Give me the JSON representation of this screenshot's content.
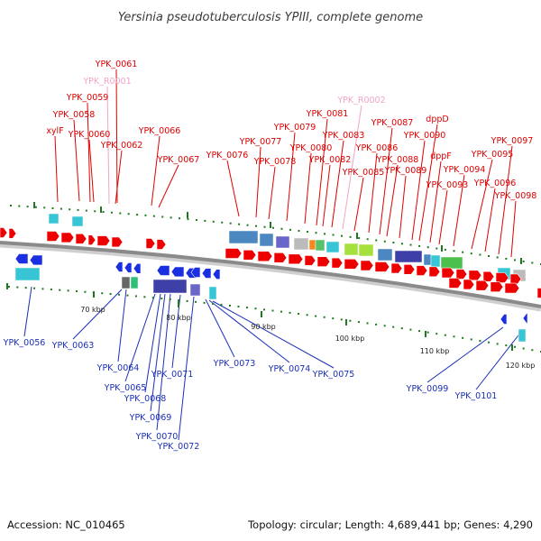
{
  "title": "Yersinia pseudotuberculosis YPIII, complete genome",
  "footer": {
    "accession": "Accession: NC_010465",
    "summary": "Topology: circular; Length: 4,689,441 bp; Genes: 4,290"
  },
  "colors": {
    "forward_gene": "#ee0000",
    "reverse_gene": "#1a2fe0",
    "forward_label": "#dd0000",
    "rna_label": "#f2a3c8",
    "reverse_label": "#1a2fb8",
    "tick_mark": "#1e7a1e",
    "backbone": "#8a8a8a"
  },
  "ticks": [
    "70 kbp",
    "80 kbp",
    "90 kbp",
    "100 kbp",
    "110 kbp",
    "120 kbp"
  ],
  "labels_top": [
    {
      "text": "YPK_0061",
      "type": "cds"
    },
    {
      "text": "YPK_R0001",
      "type": "rna"
    },
    {
      "text": "YPK_0059",
      "type": "cds"
    },
    {
      "text": "YPK_0058",
      "type": "cds"
    },
    {
      "text": "YPK_0060",
      "type": "cds"
    },
    {
      "text": "xylF",
      "type": "cds"
    },
    {
      "text": "YPK_0062",
      "type": "cds"
    },
    {
      "text": "YPK_0066",
      "type": "cds"
    },
    {
      "text": "YPK_0067",
      "type": "cds"
    },
    {
      "text": "YPK_0076",
      "type": "cds"
    },
    {
      "text": "YPK_0077",
      "type": "cds"
    },
    {
      "text": "YPK_0078",
      "type": "cds"
    },
    {
      "text": "YPK_0079",
      "type": "cds"
    },
    {
      "text": "YPK_0080",
      "type": "cds"
    },
    {
      "text": "YPK_0081",
      "type": "cds"
    },
    {
      "text": "YPK_0082",
      "type": "cds"
    },
    {
      "text": "YPK_0083",
      "type": "cds"
    },
    {
      "text": "YPK_R0002",
      "type": "rna"
    },
    {
      "text": "YPK_0085",
      "type": "cds"
    },
    {
      "text": "YPK_0086",
      "type": "cds"
    },
    {
      "text": "YPK_0087",
      "type": "cds"
    },
    {
      "text": "YPK_0088",
      "type": "cds"
    },
    {
      "text": "YPK_0089",
      "type": "cds"
    },
    {
      "text": "YPK_0090",
      "type": "cds"
    },
    {
      "text": "dppD",
      "type": "cds"
    },
    {
      "text": "dppF",
      "type": "cds"
    },
    {
      "text": "YPK_0093",
      "type": "cds"
    },
    {
      "text": "YPK_0094",
      "type": "cds"
    },
    {
      "text": "YPK_0095",
      "type": "cds"
    },
    {
      "text": "YPK_0096",
      "type": "cds"
    },
    {
      "text": "YPK_0097",
      "type": "cds"
    },
    {
      "text": "YPK_0098",
      "type": "cds"
    }
  ],
  "labels_bottom": [
    {
      "text": "YPK_0056"
    },
    {
      "text": "YPK_0063"
    },
    {
      "text": "YPK_0064"
    },
    {
      "text": "YPK_0065"
    },
    {
      "text": "YPK_0068"
    },
    {
      "text": "YPK_0069"
    },
    {
      "text": "YPK_0070"
    },
    {
      "text": "YPK_0071"
    },
    {
      "text": "YPK_0072"
    },
    {
      "text": "YPK_0073"
    },
    {
      "text": "YPK_0074"
    },
    {
      "text": "YPK_0075"
    },
    {
      "text": "YPK_0099"
    },
    {
      "text": "YPK_0101"
    }
  ]
}
